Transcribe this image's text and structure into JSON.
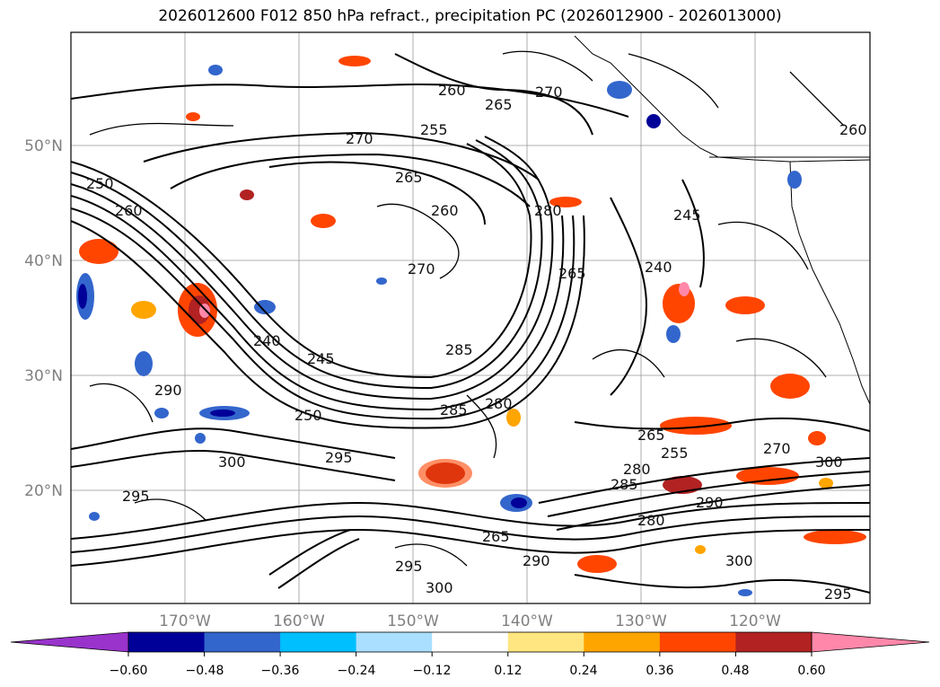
{
  "title": "2026012600 F012 850 hPa refract., precipitation PC (2026012900 - 2026013000)",
  "axes": {
    "lat_labels": [
      "50°N",
      "40°N",
      "30°N",
      "20°N"
    ],
    "lon_labels": [
      "170°W",
      "160°W",
      "150°W",
      "140°W",
      "130°W",
      "120°W"
    ]
  },
  "colorbar": {
    "ticks": [
      "−0.60",
      "−0.48",
      "−0.36",
      "−0.24",
      "−0.12",
      "0.12",
      "0.24",
      "0.36",
      "0.48",
      "0.60"
    ],
    "colors": [
      "#9933cc",
      "#000099",
      "#3366cc",
      "#00bfff",
      "#aadfff",
      "#ffffff",
      "#ffe680",
      "#ffa500",
      "#ff4500",
      "#b22222",
      "#ff88aa"
    ]
  },
  "contour_labels": [
    "260",
    "265",
    "270",
    "255",
    "265",
    "260",
    "280",
    "270",
    "245",
    "240",
    "265",
    "250",
    "260",
    "240",
    "245",
    "270",
    "285",
    "280",
    "290",
    "250",
    "285",
    "295",
    "300",
    "295",
    "300",
    "265",
    "280",
    "290",
    "295",
    "300",
    "265",
    "270",
    "255",
    "285",
    "280",
    "290",
    "300",
    "295",
    "260"
  ]
}
